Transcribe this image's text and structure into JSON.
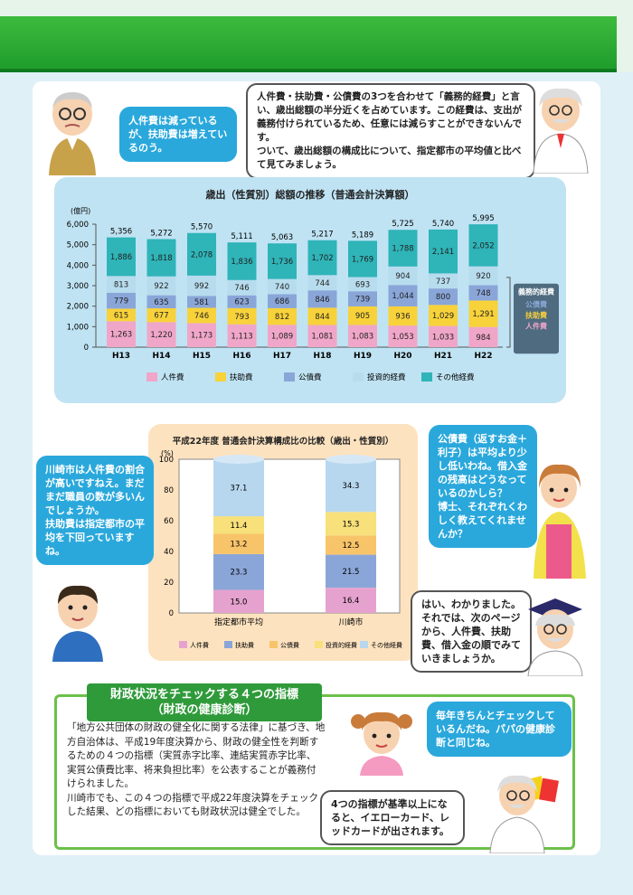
{
  "top_chart": {
    "title": "歳出（性質別）総額の推移（普通会計決算額）",
    "y_unit": "(億円)",
    "y_ticks": [
      "0",
      "1,000",
      "2,000",
      "3,000",
      "4,000",
      "5,000",
      "6,000"
    ],
    "categories": [
      "H13",
      "H14",
      "H15",
      "H16",
      "H17",
      "H18",
      "H19",
      "H20",
      "H21",
      "H22"
    ],
    "totals": [
      "5,356",
      "5,272",
      "5,570",
      "5,111",
      "5,063",
      "5,217",
      "5,189",
      "5,725",
      "5,740",
      "5,995"
    ],
    "legend": [
      "人件費",
      "扶助費",
      "公債費",
      "投資的経費",
      "その他経費"
    ],
    "colors": [
      "#f0a6c8",
      "#f8d23a",
      "#8aa6d8",
      "#b7dcee",
      "#2fb4b8"
    ],
    "bracket_title": "義務的経費",
    "bracket_items": [
      "公債費",
      "扶助費",
      "人件費"
    ]
  },
  "chart_data": [
    {
      "type": "bar",
      "title": "歳出（性質別）総額の推移（普通会計決算額）",
      "ylabel": "(億円)",
      "ylim": [
        0,
        6000
      ],
      "categories": [
        "H13",
        "H14",
        "H15",
        "H16",
        "H17",
        "H18",
        "H19",
        "H20",
        "H21",
        "H22"
      ],
      "series": [
        {
          "name": "人件費",
          "values": [
            1263,
            1220,
            1173,
            1113,
            1089,
            1081,
            1083,
            1053,
            1033,
            984
          ]
        },
        {
          "name": "扶助費",
          "values": [
            615,
            677,
            746,
            793,
            812,
            844,
            905,
            936,
            1029,
            1291
          ]
        },
        {
          "name": "公債費",
          "values": [
            779,
            635,
            581,
            623,
            686,
            846,
            739,
            1044,
            800,
            748
          ]
        },
        {
          "name": "投資的経費",
          "values": [
            813,
            922,
            992,
            746,
            740,
            744,
            693,
            904,
            737,
            920
          ]
        },
        {
          "name": "その他経費",
          "values": [
            1886,
            1818,
            2078,
            1836,
            1736,
            1702,
            1769,
            1788,
            2141,
            2052
          ]
        }
      ]
    },
    {
      "type": "bar",
      "title": "平成22年度 普通会計決算構成比の比較（歳出・性質別）",
      "ylabel": "(%)",
      "ylim": [
        0,
        100
      ],
      "categories": [
        "指定都市平均",
        "川崎市"
      ],
      "series": [
        {
          "name": "人件費",
          "values": [
            15.0,
            16.4
          ]
        },
        {
          "name": "扶助費",
          "values": [
            23.3,
            21.5
          ]
        },
        {
          "name": "公債費",
          "values": [
            13.2,
            12.5
          ]
        },
        {
          "name": "投資的経費",
          "values": [
            11.4,
            15.3
          ]
        },
        {
          "name": "その他経費",
          "values": [
            37.1,
            34.3
          ]
        }
      ]
    }
  ],
  "mid_chart": {
    "title": "平成22年度 普通会計決算構成比の比較（歳出・性質別）",
    "y_unit": "(%)",
    "y_ticks": [
      "0",
      "20",
      "40",
      "60",
      "80",
      "100"
    ],
    "categories": [
      "指定都市平均",
      "川崎市"
    ],
    "legend": [
      "人件費",
      "扶助費",
      "公債費",
      "投資的経費",
      "その他経費"
    ],
    "colors": [
      "#e6a2cf",
      "#8aa6d8",
      "#f8c46a",
      "#f8e07a",
      "#b7d7ef"
    ]
  },
  "bubbles": {
    "grandpa": "人件費は減っているが、扶助費は増えているのう。",
    "doctor": "人件費・扶助費・公債費の3つを合わせて「義務的経費」と言い、歳出総額の半分近くを占めています。この経費は、支出が義務付けられているため、任意には減らすことができないんです。\nついて、歳出総額の構成比について、指定都市の平均値と比べて見てみましょう。",
    "boy": "川崎市は人件費の割合が高いですねえ。まだまだ職員の数が多いんでしょうか。\n扶助費は指定都市の平均を下回っていますね。",
    "mother": "公債費（返すお金＋利子）は平均より少し低いわね。借入金の残高はどうなっているのかしら？\n博士、それぞれくわしく教えてくれませんか？",
    "professor": "はい、わかりました。それでは、次のページから、人件費、扶助費、借入金の順でみていきましょうか。",
    "girl": "毎年きちんとチェックしているんだね。パパの健康診断と同じね。",
    "doctor2": "4つの指標が基準以上になると、イエローカード、レッドカードが出されます。"
  },
  "section": {
    "title": "財政状況をチェックする４つの指標\n（財政の健康診断）",
    "body": "「地方公共団体の財政の健全化に関する法律」に基づき、地方自治体は、平成19年度決算から、財政の健全性を判断するための４つの指標（実質赤字比率、連結実質赤字比率、実質公債費比率、将来負担比率）を公表することが義務付けられました。\n川崎市でも、この４つの指標で平成22年度決算をチェックした結果、どの指標においても財政状況は健全でした。"
  }
}
